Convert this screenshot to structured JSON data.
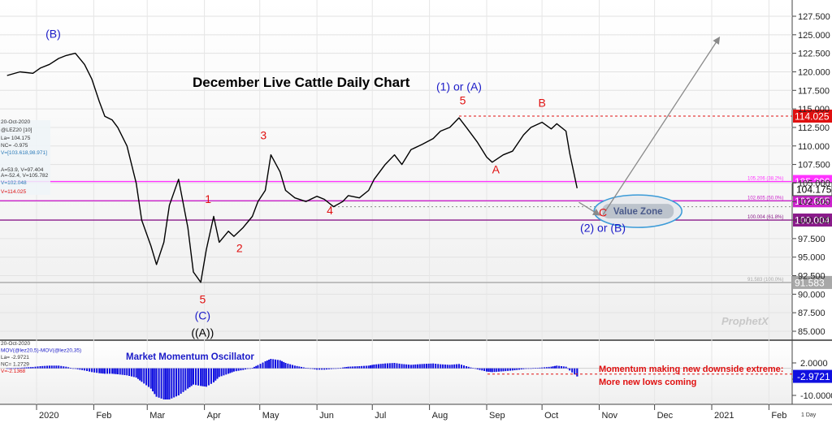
{
  "chart_data": [
    {
      "type": "line",
      "title": "December Live Cattle Daily Chart",
      "symbol": "@LEZ20 [10]",
      "date": "20-Oct-2020",
      "ylim": [
        84,
        130
      ],
      "y_ticks": [
        85,
        87.5,
        90,
        92.5,
        95,
        97.5,
        100,
        102.5,
        105,
        107.5,
        110,
        112.5,
        115,
        117.5,
        120,
        122.5,
        125,
        127.5
      ],
      "y_tick_labels": [
        "85.000",
        "87.500",
        "90.000",
        "92.500",
        "95.000",
        "97.500",
        "100.000",
        "102.500",
        "105.000",
        "107.500",
        "110.000",
        "112.500",
        "115.000",
        "117.500",
        "120.000",
        "122.500",
        "125.000",
        "127.500"
      ],
      "x_tick_labels": [
        "2020",
        "Feb",
        "Mar",
        "Apr",
        "May",
        "Jun",
        "Jul",
        "Aug",
        "Sep",
        "Oct",
        "Nov",
        "Dec",
        "2021",
        "Feb"
      ],
      "interval_label": "1 Day",
      "x": [
        "2019-12-16",
        "2019-12-23",
        "2019-12-30",
        "2020-01-03",
        "2020-01-08",
        "2020-01-13",
        "2020-01-17",
        "2020-01-22",
        "2020-01-27",
        "2020-01-31",
        "2020-02-04",
        "2020-02-07",
        "2020-02-11",
        "2020-02-14",
        "2020-02-19",
        "2020-02-24",
        "2020-02-27",
        "2020-03-03",
        "2020-03-06",
        "2020-03-10",
        "2020-03-13",
        "2020-03-18",
        "2020-03-23",
        "2020-03-26",
        "2020-03-30",
        "2020-04-02",
        "2020-04-06",
        "2020-04-09",
        "2020-04-14",
        "2020-04-17",
        "2020-04-22",
        "2020-04-27",
        "2020-04-30",
        "2020-05-04",
        "2020-05-07",
        "2020-05-12",
        "2020-05-15",
        "2020-05-20",
        "2020-05-26",
        "2020-06-01",
        "2020-06-05",
        "2020-06-10",
        "2020-06-15",
        "2020-06-18",
        "2020-06-24",
        "2020-06-29",
        "2020-07-02",
        "2020-07-08",
        "2020-07-13",
        "2020-07-17",
        "2020-07-22",
        "2020-07-28",
        "2020-08-03",
        "2020-08-07",
        "2020-08-12",
        "2020-08-17",
        "2020-08-21",
        "2020-08-27",
        "2020-09-01",
        "2020-09-04",
        "2020-09-10",
        "2020-09-15",
        "2020-09-21",
        "2020-09-25",
        "2020-10-01",
        "2020-10-06",
        "2020-10-09",
        "2020-10-14",
        "2020-10-16",
        "2020-10-20"
      ],
      "series": [
        {
          "values": [
            119.5,
            120.0,
            119.8,
            120.5,
            121.0,
            121.8,
            122.2,
            122.5,
            121.0,
            119.0,
            116.0,
            114.0,
            113.5,
            112.5,
            110.0,
            105.0,
            100.0,
            96.5,
            94.0,
            97.0,
            102.0,
            105.5,
            99.0,
            93.0,
            91.6,
            96.0,
            100.5,
            97.0,
            98.5,
            97.8,
            99.0,
            100.5,
            102.5,
            104.0,
            108.8,
            106.5,
            104.0,
            103.0,
            102.5,
            103.2,
            102.8,
            101.8,
            102.5,
            103.3,
            103.0,
            104.0,
            105.5,
            107.5,
            108.8,
            107.5,
            109.5,
            110.2,
            111.0,
            112.0,
            112.5,
            113.8,
            112.5,
            110.5,
            108.5,
            107.8,
            108.8,
            109.3,
            111.5,
            112.5,
            113.2,
            112.3,
            113.0,
            112.0,
            109.0,
            104.3
          ]
        },
        {
          "name": "MOV(@lez20,5)-MOV(@lez20,35)",
          "type": "bar",
          "last_value": "-2.9721",
          "ylim": [
            -12,
            5
          ],
          "y_ticks": [
            2,
            -4,
            -10
          ],
          "y_tick_labels": [
            "2.0000",
            "-4.0000",
            "-10.0000"
          ],
          "values": [
            -0.2,
            0.2,
            0.5,
            0.8,
            1.0,
            1.0,
            0.6,
            -0.2,
            -0.8,
            -1.4,
            -1.8,
            -2.0,
            -2.0,
            -2.2,
            -2.6,
            -3.4,
            -5.0,
            -7.5,
            -10.5,
            -11.5,
            -11.5,
            -10.0,
            -7.5,
            -6.0,
            -6.5,
            -6.8,
            -5.2,
            -3.2,
            -2.0,
            -1.2,
            -0.6,
            0.2,
            1.2,
            2.6,
            3.5,
            3.0,
            2.0,
            1.0,
            0.2,
            -0.5,
            -0.5,
            -0.2,
            0.3,
            0.6,
            0.8,
            1.0,
            1.4,
            1.8,
            2.0,
            1.6,
            1.3,
            1.6,
            1.8,
            1.5,
            1.3,
            1.6,
            0.8,
            -0.4,
            -1.2,
            -1.4,
            -1.1,
            -0.8,
            -0.3,
            0.0,
            0.3,
            0.6,
            1.0,
            0.6,
            -0.8,
            -3.0
          ]
        }
      ],
      "wave_labels": [
        {
          "text": "(B)",
          "date": "2020-01-10",
          "y": 124.6,
          "color": "#1a1ac8"
        },
        {
          "text": "1",
          "date": "2020-04-03",
          "y": 102.3,
          "color": "#e01010"
        },
        {
          "text": "2",
          "date": "2020-04-20",
          "y": 95.7,
          "color": "#e01010"
        },
        {
          "text": "3",
          "date": "2020-05-03",
          "y": 110.9,
          "color": "#e01010"
        },
        {
          "text": "4",
          "date": "2020-06-08",
          "y": 100.8,
          "color": "#e01010"
        },
        {
          "text": "5",
          "date": "2020-03-31",
          "y": 88.8,
          "color": "#e01010"
        },
        {
          "text": "(C)",
          "date": "2020-03-31",
          "y": 86.6,
          "color": "#1a1ac8"
        },
        {
          "text": "((A))",
          "date": "2020-03-31",
          "y": 84.3,
          "color": "#000000"
        },
        {
          "text": "(1) or (A)",
          "date": "2020-08-17",
          "y": 117.5,
          "color": "#1a1ac8"
        },
        {
          "text": "5",
          "date": "2020-08-19",
          "y": 115.6,
          "color": "#e01010"
        },
        {
          "text": "A",
          "date": "2020-09-06",
          "y": 106.3,
          "color": "#e01010"
        },
        {
          "text": "B",
          "date": "2020-10-01",
          "y": 115.3,
          "color": "#e01010"
        },
        {
          "text": "C",
          "date": "2020-11-03",
          "y": 100.5,
          "color": "#e01010"
        },
        {
          "text": "(2) or (B)",
          "date": "2020-11-03",
          "y": 98.4,
          "color": "#1a1ac8"
        }
      ],
      "levels": [
        {
          "value": 114.025,
          "label": "114.025",
          "color": "#e01010",
          "style": "dashed"
        },
        {
          "value": 105.206,
          "label": "105.206",
          "note": "105.206 (38.2%)",
          "color": "#ff33ff",
          "style": "solid"
        },
        {
          "value": 102.605,
          "label": "102.605",
          "note": "102.605 (50.0%)",
          "color": "#cc22cc",
          "style": "solid"
        },
        {
          "value": 100.004,
          "label": "100.004",
          "note": "100.004 (61.8%)",
          "color": "#8a1a8a",
          "style": "solid"
        },
        {
          "value": 91.583,
          "label": "91.583",
          "note": "91.583 (100.0%)",
          "color": "#a8a8a8",
          "style": "solid"
        }
      ],
      "last_price": {
        "value": 104.175,
        "label": "104.175"
      },
      "value_zone": {
        "label": "Value Zone"
      },
      "oscillator_title": "Market Momentum Oscillator",
      "oscillator_notes": [
        "Momentum making new downside extreme:",
        "More new lows coming"
      ],
      "watermark": "ProphetX"
    }
  ],
  "info_panel": {
    "lines": [
      "20-Oct-2020",
      "@LEZ20 [10]",
      "La= 104.175",
      "NC= -0.975",
      "V=[103.618,98.971]",
      "A=53.9, V=97.404",
      "A=-52.4, V=105.782",
      "V=102.048",
      "V=114.025"
    ]
  },
  "osc_panel": {
    "lines": [
      "20-Oct-2020",
      "MOV(@lez20,5)-MOV(@lez20,35)",
      "La= -2.9721",
      "NC= 1.2729",
      "V=-2.1368"
    ]
  },
  "colors": {
    "price": "#000000",
    "oscillator": "#1010e0",
    "accent_red": "#e01010",
    "wave_blue": "#1a1ac8",
    "value_zone": "#3b9bd8"
  }
}
